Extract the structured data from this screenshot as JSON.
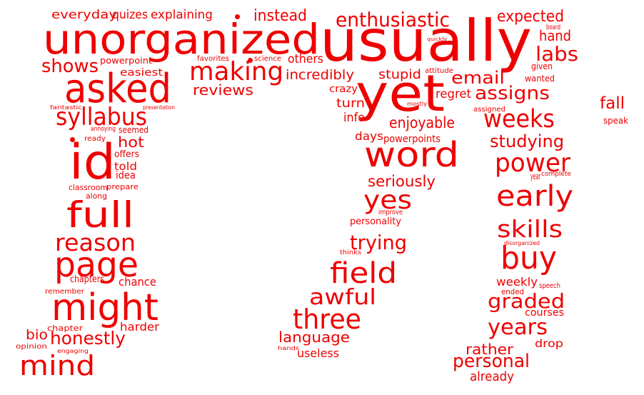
{
  "color": "#ee0000",
  "words": [
    "everyday",
    "quizes",
    "explaining",
    "instead",
    "enthusiastic",
    "expected",
    "board",
    "hand",
    "unorganized",
    "usually",
    "quickly",
    "labs",
    "given",
    "wanted",
    "powerpoint",
    "favorites",
    "science",
    "others",
    "shows",
    "easiest",
    "making",
    "incredibly",
    "stupid",
    "attitude",
    "email",
    "asked",
    "reviews",
    "crazy",
    "regret",
    "assigns",
    "fall",
    "yet",
    "fantastic",
    "presentation",
    "mostly",
    "assigned",
    "speak",
    "syllabus",
    "turn",
    "info",
    "enjoyable",
    "weeks",
    "annoying",
    "seemed",
    "days",
    "powerpoints",
    "studying",
    "ready",
    "hot",
    "offers",
    "told",
    "idea",
    "id",
    "word",
    "power",
    "year",
    "complete",
    "seriously",
    "classroom",
    "prepare",
    "along",
    "early",
    "yes",
    "full",
    "improve",
    "personality",
    "skills",
    "disorganized",
    "trying",
    "reason",
    "thinks",
    "buy",
    "page",
    "field",
    "chapters",
    "chance",
    "weekly",
    "speech",
    "remember",
    "ended",
    "might",
    "awful",
    "graded",
    "courses",
    "three",
    "harder",
    "chapter",
    "years",
    "bio",
    "honestly",
    "language",
    "drop",
    "opinion",
    "rather",
    "hands",
    "engaging",
    "useless",
    "personal",
    "mind",
    "already"
  ]
}
